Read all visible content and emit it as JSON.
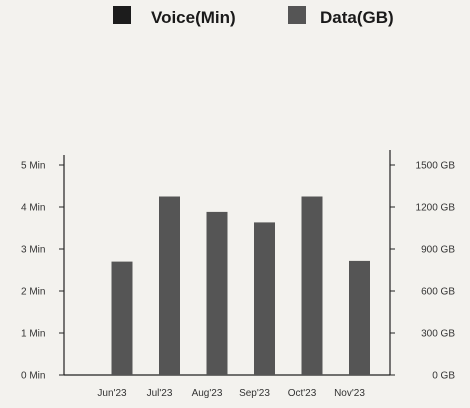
{
  "legend": {
    "placement": "top-center",
    "items": [
      {
        "label": "Voice(Min)",
        "color": "#1c1c1c"
      },
      {
        "label": "Data(GB)",
        "color": "#555555"
      }
    ]
  },
  "chart_data": {
    "type": "bar",
    "categories": [
      "Jun'23",
      "Jul'23",
      "Aug'23",
      "Sep'23",
      "Oct'23",
      "Nov'23"
    ],
    "series": [
      {
        "name": "Voice(Min)",
        "axis": "left",
        "color": "#1c1c1c",
        "values": [
          0,
          0,
          0,
          0,
          0,
          0
        ]
      },
      {
        "name": "Data(GB)",
        "axis": "right",
        "color": "#555555",
        "values": [
          810,
          1275,
          1165,
          1090,
          1275,
          815
        ]
      }
    ],
    "y_left": {
      "ticks": [
        "0 Min",
        "1 Min",
        "2 Min",
        "3 Min",
        "4 Min",
        "5 Min"
      ],
      "min": 0,
      "max": 5
    },
    "y_right": {
      "ticks": [
        "0 GB",
        "300 GB",
        "600 GB",
        "900 GB",
        "1200 GB",
        "1500 GB"
      ],
      "min": 0,
      "max": 1500
    },
    "grid": false
  }
}
